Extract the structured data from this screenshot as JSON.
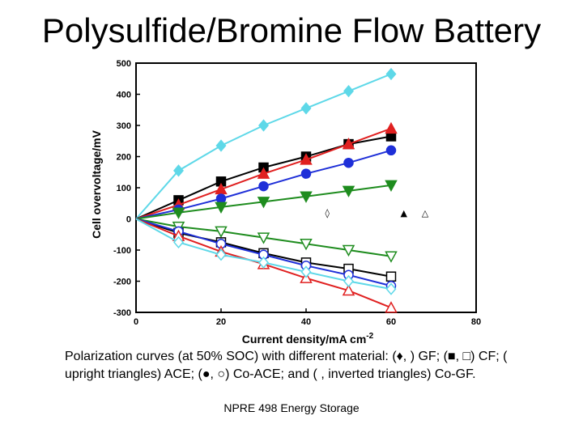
{
  "slide": {
    "title": "Polysulfide/Bromine Flow Battery",
    "caption": "Polarization curves (at 50% SOC) with different material: (♦,    ) GF; (■, □) CF; ( upright triangles) ACE; (●, ○) Co-ACE; and (   ,  inverted triangles) Co-GF.",
    "footer": "NPRE 498 Energy Storage"
  },
  "chart_data": {
    "type": "line",
    "title": "",
    "xlabel": "Current density/mA cm",
    "xlabel_sup": "-2",
    "ylabel": "Cell overvoltage/mV",
    "xlim": [
      0,
      80
    ],
    "ylim": [
      -300,
      500
    ],
    "xticks": [
      "0",
      "20",
      "40",
      "60",
      "80"
    ],
    "yticks": [
      "-300",
      "-200",
      "-100",
      "0",
      "100",
      "200",
      "300",
      "400",
      "500"
    ],
    "grid": false,
    "x": [
      0,
      10,
      20,
      30,
      40,
      50,
      60
    ],
    "series": [
      {
        "color": "#5ED8E8",
        "marker": "diamond",
        "filled": true,
        "values": [
          0,
          155,
          235,
          300,
          355,
          410,
          465
        ]
      },
      {
        "color": "#000000",
        "marker": "square",
        "filled": true,
        "values": [
          0,
          60,
          120,
          165,
          200,
          240,
          265
        ]
      },
      {
        "color": "#E02020",
        "marker": "triangle-up",
        "filled": true,
        "values": [
          0,
          45,
          95,
          145,
          190,
          240,
          290
        ]
      },
      {
        "color": "#1E2FD8",
        "marker": "circle",
        "filled": true,
        "values": [
          0,
          30,
          65,
          105,
          145,
          180,
          220
        ]
      },
      {
        "color": "#1E8C1E",
        "marker": "triangle-down",
        "filled": true,
        "values": [
          0,
          20,
          38,
          55,
          72,
          90,
          108
        ]
      },
      {
        "color": "#1E8C1E",
        "marker": "triangle-down",
        "filled": false,
        "values": [
          0,
          -25,
          -40,
          -60,
          -80,
          -100,
          -120
        ]
      },
      {
        "color": "#000000",
        "marker": "square",
        "filled": false,
        "values": [
          0,
          -45,
          -75,
          -110,
          -140,
          -160,
          -185
        ]
      },
      {
        "color": "#1E2FD8",
        "marker": "circle",
        "filled": false,
        "values": [
          0,
          -40,
          -80,
          -115,
          -150,
          -180,
          -215
        ]
      },
      {
        "color": "#E02020",
        "marker": "triangle-up",
        "filled": false,
        "values": [
          0,
          -55,
          -105,
          -145,
          -190,
          -230,
          -285
        ]
      },
      {
        "color": "#5ED8E8",
        "marker": "diamond",
        "filled": false,
        "values": [
          0,
          -75,
          -115,
          -140,
          -170,
          -200,
          -225
        ]
      }
    ],
    "stray_symbols": [
      {
        "char": "◊",
        "x": 45,
        "y": 20
      },
      {
        "char": "▲",
        "x": 63,
        "y": 20
      },
      {
        "char": "△",
        "x": 68,
        "y": 20
      }
    ]
  }
}
